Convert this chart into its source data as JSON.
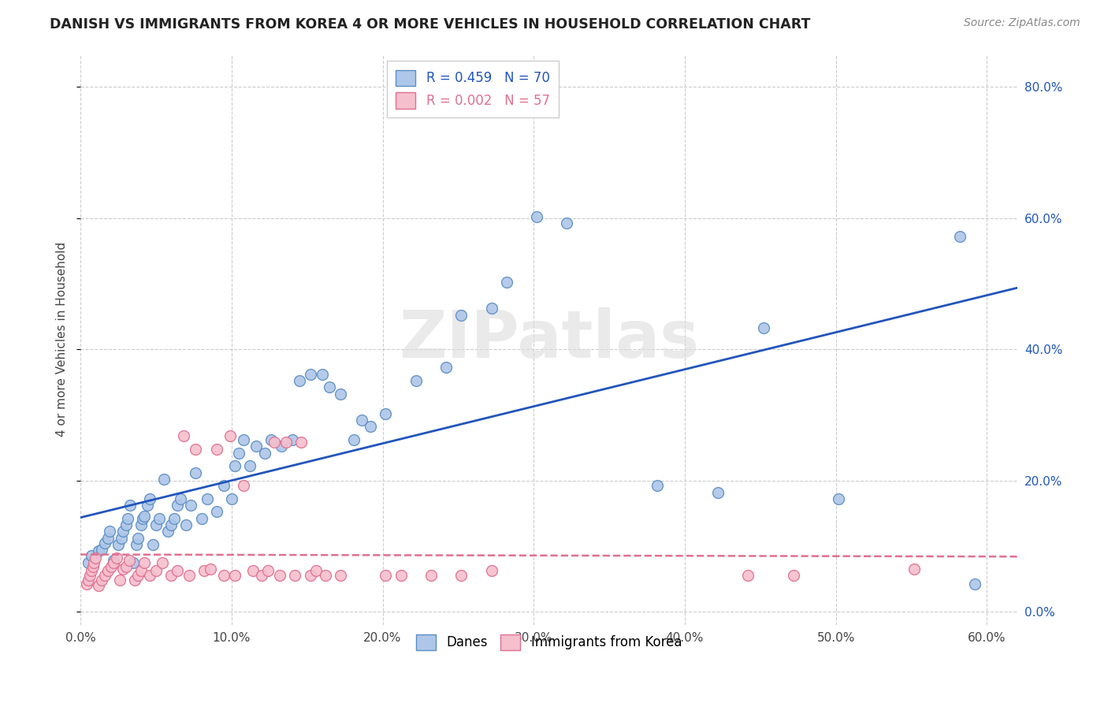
{
  "title": "DANISH VS IMMIGRANTS FROM KOREA 4 OR MORE VEHICLES IN HOUSEHOLD CORRELATION CHART",
  "source": "Source: ZipAtlas.com",
  "ylabel": "4 or more Vehicles in Household",
  "xlim": [
    0.0,
    0.62
  ],
  "ylim": [
    -0.02,
    0.85
  ],
  "danes_color": "#aec6e8",
  "danes_edge_color": "#5b8ec4",
  "korea_color": "#f5bfcd",
  "korea_edge_color": "#e07090",
  "danes_R": 0.459,
  "danes_N": 70,
  "korea_R": 0.002,
  "korea_N": 57,
  "danes_line_color": "#2255bb",
  "korea_line_color": "#e07090",
  "watermark": "ZIPatlas",
  "danes_x": [
    0.005,
    0.007,
    0.012,
    0.014,
    0.016,
    0.018,
    0.019,
    0.022,
    0.025,
    0.027,
    0.028,
    0.03,
    0.031,
    0.033,
    0.035,
    0.037,
    0.038,
    0.04,
    0.041,
    0.042,
    0.044,
    0.046,
    0.048,
    0.05,
    0.052,
    0.055,
    0.058,
    0.06,
    0.062,
    0.064,
    0.066,
    0.07,
    0.073,
    0.076,
    0.08,
    0.084,
    0.09,
    0.095,
    0.1,
    0.102,
    0.105,
    0.108,
    0.112,
    0.116,
    0.122,
    0.126,
    0.133,
    0.14,
    0.145,
    0.152,
    0.16,
    0.165,
    0.172,
    0.181,
    0.186,
    0.192,
    0.202,
    0.222,
    0.242,
    0.252,
    0.272,
    0.282,
    0.302,
    0.322,
    0.382,
    0.422,
    0.452,
    0.502,
    0.582,
    0.592
  ],
  "danes_y": [
    0.075,
    0.085,
    0.092,
    0.095,
    0.105,
    0.112,
    0.122,
    0.078,
    0.102,
    0.112,
    0.122,
    0.132,
    0.142,
    0.162,
    0.075,
    0.102,
    0.112,
    0.132,
    0.142,
    0.145,
    0.162,
    0.172,
    0.102,
    0.132,
    0.142,
    0.202,
    0.122,
    0.132,
    0.142,
    0.162,
    0.172,
    0.132,
    0.162,
    0.212,
    0.142,
    0.172,
    0.152,
    0.192,
    0.172,
    0.222,
    0.242,
    0.262,
    0.222,
    0.252,
    0.242,
    0.262,
    0.252,
    0.262,
    0.352,
    0.362,
    0.362,
    0.342,
    0.332,
    0.262,
    0.292,
    0.282,
    0.302,
    0.352,
    0.372,
    0.452,
    0.462,
    0.502,
    0.602,
    0.592,
    0.192,
    0.182,
    0.432,
    0.172,
    0.572,
    0.042
  ],
  "korea_x": [
    0.004,
    0.005,
    0.006,
    0.007,
    0.008,
    0.009,
    0.01,
    0.012,
    0.014,
    0.016,
    0.018,
    0.02,
    0.022,
    0.024,
    0.026,
    0.028,
    0.03,
    0.032,
    0.036,
    0.038,
    0.04,
    0.042,
    0.046,
    0.05,
    0.054,
    0.06,
    0.064,
    0.068,
    0.072,
    0.076,
    0.082,
    0.086,
    0.09,
    0.095,
    0.099,
    0.102,
    0.108,
    0.114,
    0.12,
    0.124,
    0.128,
    0.132,
    0.136,
    0.142,
    0.146,
    0.152,
    0.156,
    0.162,
    0.172,
    0.202,
    0.212,
    0.232,
    0.252,
    0.272,
    0.442,
    0.472,
    0.552
  ],
  "korea_y": [
    0.042,
    0.048,
    0.055,
    0.062,
    0.068,
    0.075,
    0.082,
    0.04,
    0.048,
    0.055,
    0.062,
    0.068,
    0.075,
    0.082,
    0.048,
    0.065,
    0.068,
    0.078,
    0.048,
    0.055,
    0.062,
    0.075,
    0.055,
    0.062,
    0.075,
    0.055,
    0.062,
    0.268,
    0.055,
    0.248,
    0.062,
    0.065,
    0.248,
    0.055,
    0.268,
    0.055,
    0.192,
    0.062,
    0.055,
    0.062,
    0.258,
    0.055,
    0.258,
    0.055,
    0.258,
    0.055,
    0.062,
    0.055,
    0.055,
    0.055,
    0.055,
    0.055,
    0.055,
    0.062,
    0.055,
    0.055,
    0.065
  ]
}
